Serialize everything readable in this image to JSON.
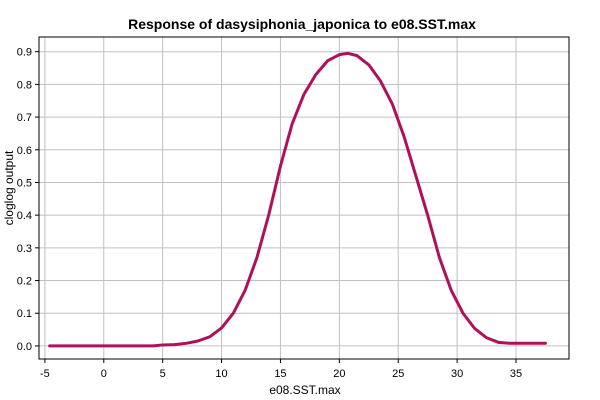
{
  "chart_data": {
    "type": "line",
    "title": "Response of dasysiphonia_japonica to e08.SST.max",
    "xlabel": "e08.SST.max",
    "ylabel": "cloglog output",
    "xlim": [
      -5.5,
      39.5
    ],
    "ylim": [
      -0.04,
      0.945
    ],
    "x_ticks": [
      -5,
      0,
      5,
      10,
      15,
      20,
      25,
      30,
      35
    ],
    "x_tick_labels": [
      "-5",
      "0",
      "5",
      "10",
      "15",
      "20",
      "25",
      "30",
      "35"
    ],
    "y_ticks": [
      0.0,
      0.1,
      0.2,
      0.3,
      0.4,
      0.5,
      0.6,
      0.7,
      0.8,
      0.9
    ],
    "y_tick_labels": [
      "0.0",
      "0.1",
      "0.2",
      "0.3",
      "0.4",
      "0.5",
      "0.6",
      "0.7",
      "0.8",
      "0.9"
    ],
    "grid": true,
    "series": [
      {
        "color": "#b0105a",
        "x": [
          -4.6,
          0,
          4.2,
          5,
          6,
          7,
          8,
          9,
          10,
          11,
          12,
          13,
          14,
          15,
          16,
          17,
          18,
          19,
          20,
          20.7,
          21.5,
          22.5,
          23.5,
          24.5,
          25.5,
          26.5,
          27.5,
          28.5,
          29.5,
          30.5,
          31.5,
          32.5,
          33.5,
          34.5,
          36,
          37.5
        ],
        "y": [
          0.0,
          0.0,
          0.0,
          0.003,
          0.004,
          0.008,
          0.015,
          0.028,
          0.055,
          0.1,
          0.17,
          0.27,
          0.4,
          0.55,
          0.68,
          0.77,
          0.83,
          0.872,
          0.891,
          0.895,
          0.888,
          0.86,
          0.81,
          0.74,
          0.64,
          0.52,
          0.4,
          0.27,
          0.17,
          0.1,
          0.053,
          0.025,
          0.011,
          0.008,
          0.008,
          0.008
        ]
      }
    ]
  }
}
